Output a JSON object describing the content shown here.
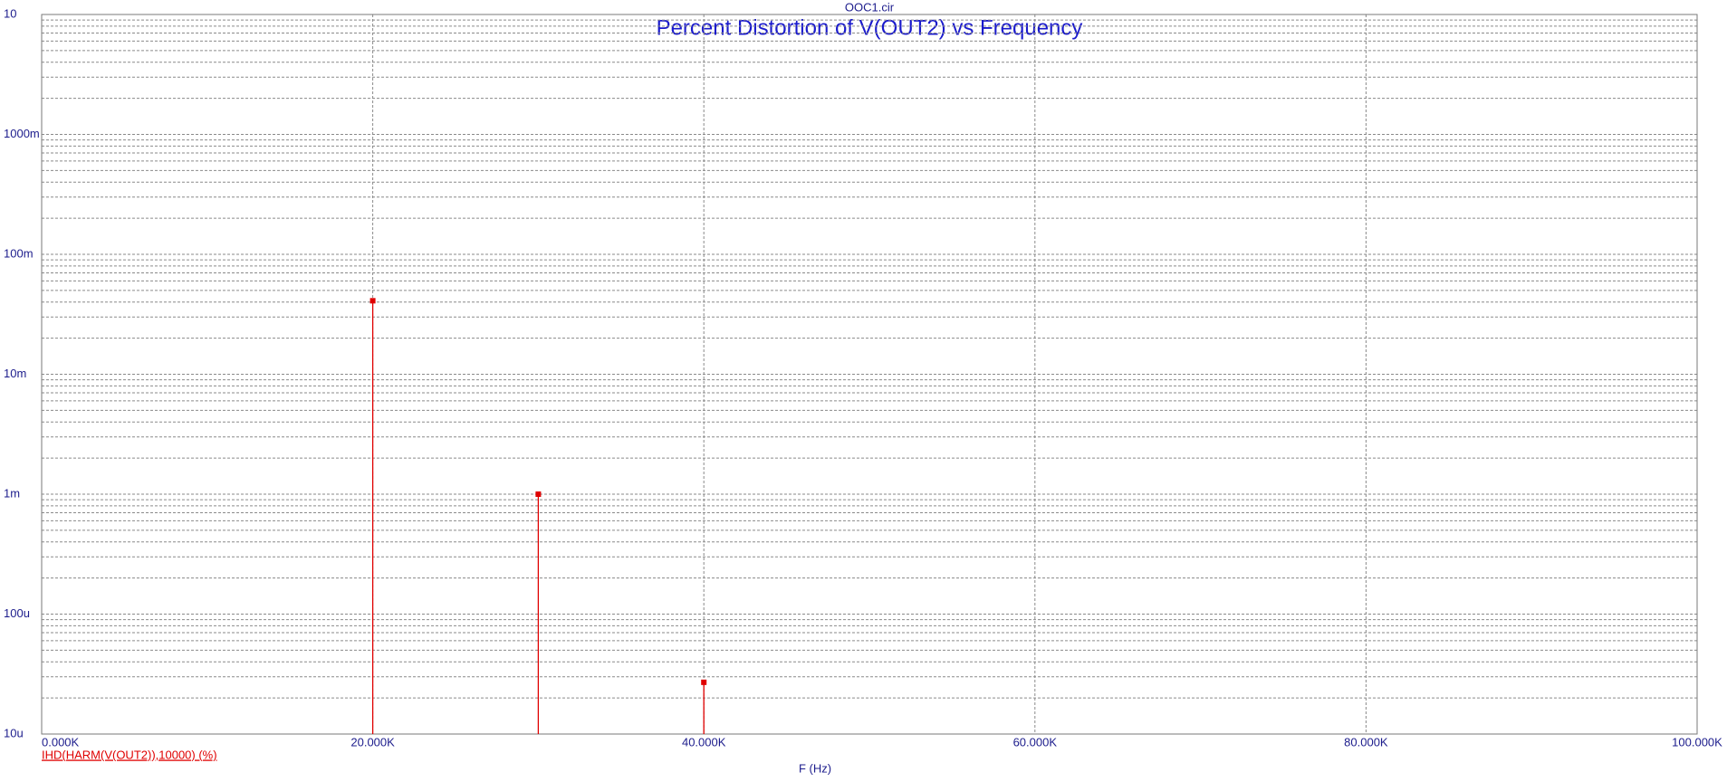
{
  "chart_data": {
    "type": "stem",
    "subtitle": "OOC1.cir",
    "title": "Percent Distortion of V(OUT2) vs Frequency",
    "x_label": "F (Hz)",
    "x": [
      20000,
      30000,
      40000
    ],
    "series": [
      {
        "name": "IHD(HARM(V(OUT2)),10000) (%)",
        "color": "#e00000",
        "values": [
          0.041,
          0.001,
          2.7e-05
        ]
      }
    ],
    "xlim": [
      0,
      100000
    ],
    "xticks": [
      {
        "value": 0,
        "label": "0.000K"
      },
      {
        "value": 20000,
        "label": "20.000K"
      },
      {
        "value": 40000,
        "label": "40.000K"
      },
      {
        "value": 60000,
        "label": "60.000K"
      },
      {
        "value": 80000,
        "label": "80.000K"
      },
      {
        "value": 100000,
        "label": "100.000K"
      }
    ],
    "ylim": [
      1e-05,
      10
    ],
    "yticks": [
      10,
      {
        "value": 1,
        "label": "1000m"
      },
      {
        "value": 0.1,
        "label": "100m"
      },
      {
        "value": 0.01,
        "label": "10m"
      },
      {
        "value": 0.001,
        "label": "1m"
      },
      {
        "value": 0.0001,
        "label": "100u"
      },
      {
        "value": 1e-05,
        "label": "10u"
      }
    ],
    "y_log": true,
    "grid": true,
    "minor_grid": true
  }
}
